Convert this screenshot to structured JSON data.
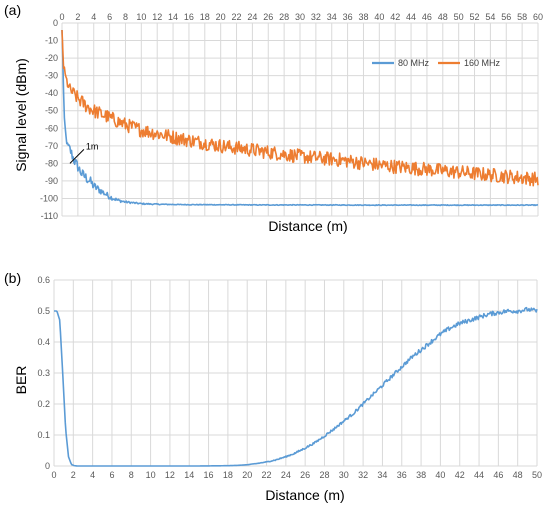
{
  "chart_data": [
    {
      "type": "line",
      "panel_label": "(a)",
      "title": "",
      "xlabel": "Distance  (m)",
      "ylabel": "Signal level  (dBm)",
      "xlim": [
        0,
        60
      ],
      "ylim": [
        -110,
        0
      ],
      "x_ticks": [
        0,
        2,
        4,
        6,
        8,
        10,
        12,
        14,
        16,
        18,
        20,
        22,
        24,
        26,
        28,
        30,
        32,
        34,
        36,
        38,
        40,
        42,
        44,
        46,
        48,
        50,
        52,
        54,
        56,
        58,
        60
      ],
      "y_ticks": [
        0,
        -10,
        -20,
        -30,
        -40,
        -50,
        -60,
        -70,
        -80,
        -90,
        -100,
        -110
      ],
      "x_axis_position": "top",
      "grid": true,
      "legend": "top-right",
      "series": [
        {
          "name": "80 MHz",
          "color": "#5B9BD5",
          "x": [
            0,
            0.1,
            0.2,
            0.3,
            0.5,
            0.7,
            1.0,
            1.5,
            2,
            2.5,
            3,
            3.5,
            4,
            5,
            6,
            7,
            8,
            10,
            12,
            15,
            20,
            25,
            30,
            40,
            50,
            60
          ],
          "y": [
            -4,
            -20,
            -40,
            -55,
            -65,
            -70,
            -72,
            -78,
            -82,
            -86,
            -88,
            -90,
            -93,
            -96,
            -99,
            -101,
            -102,
            -103,
            -103.3,
            -103.5,
            -103.6,
            -103.7,
            -103.7,
            -103.8,
            -103.8,
            -103.8
          ],
          "noise": [
            0,
            1,
            1,
            1,
            2,
            2,
            3,
            3,
            3,
            3,
            3,
            3,
            2.5,
            2,
            1.5,
            1,
            0.6,
            0.4,
            0.3,
            0.2,
            0.2,
            0.2,
            0.2,
            0.2,
            0.2,
            0.2
          ]
        },
        {
          "name": "160 MHz",
          "color": "#ED7D31",
          "x": [
            0,
            0.1,
            0.2,
            0.5,
            1,
            2,
            3,
            4,
            6,
            8,
            10,
            12,
            15,
            20,
            25,
            30,
            35,
            40,
            45,
            50,
            55,
            60
          ],
          "y": [
            -4,
            -15,
            -25,
            -32,
            -38,
            -43,
            -47,
            -50,
            -54,
            -58,
            -61,
            -63,
            -66,
            -70,
            -73,
            -76,
            -78,
            -81,
            -83,
            -85,
            -87,
            -89
          ],
          "noise": [
            0,
            1,
            2,
            3,
            3.5,
            4,
            4,
            4,
            4,
            4,
            4,
            4,
            4,
            4,
            4,
            4,
            4,
            4,
            4,
            4,
            4,
            4
          ]
        }
      ],
      "annotations": [
        {
          "text": "1m",
          "x": 1,
          "y": -80
        }
      ]
    },
    {
      "type": "line",
      "panel_label": "(b)",
      "title": "",
      "xlabel": "Distance  (m)",
      "ylabel": "BER",
      "xlim": [
        0,
        50
      ],
      "ylim": [
        0,
        0.6
      ],
      "x_ticks": [
        0,
        2,
        4,
        6,
        8,
        10,
        12,
        14,
        16,
        18,
        20,
        22,
        24,
        26,
        28,
        30,
        32,
        34,
        36,
        38,
        40,
        42,
        44,
        46,
        48,
        50
      ],
      "y_ticks": [
        0,
        0.1,
        0.2,
        0.3,
        0.4,
        0.5,
        0.6
      ],
      "y_tick_labels": [
        "0",
        "0.1",
        "0.2",
        "0.3",
        "0.4",
        "0.5",
        "0.6"
      ],
      "x_axis_position": "bottom",
      "grid": true,
      "series": [
        {
          "name": "",
          "color": "#5B9BD5",
          "x": [
            0,
            0.3,
            0.6,
            0.9,
            1.2,
            1.5,
            1.8,
            2.1,
            2.4,
            3,
            5,
            10,
            15,
            18,
            19,
            20,
            21,
            22,
            23,
            24,
            25,
            26,
            27,
            28,
            29,
            30,
            31,
            32,
            33,
            34,
            35,
            36,
            37,
            38,
            39,
            40,
            41,
            42,
            43,
            44,
            45,
            46,
            47,
            48,
            49,
            50
          ],
          "y": [
            0.5,
            0.5,
            0.47,
            0.3,
            0.12,
            0.03,
            0.005,
            0.001,
            0,
            0,
            0,
            0,
            0,
            0.001,
            0.002,
            0.004,
            0.008,
            0.013,
            0.02,
            0.03,
            0.042,
            0.058,
            0.075,
            0.097,
            0.12,
            0.145,
            0.17,
            0.2,
            0.23,
            0.26,
            0.29,
            0.32,
            0.35,
            0.375,
            0.4,
            0.425,
            0.445,
            0.46,
            0.47,
            0.48,
            0.49,
            0.495,
            0.5,
            0.5,
            0.505,
            0.5
          ],
          "noise": [
            0,
            0,
            0,
            0,
            0,
            0,
            0,
            0,
            0,
            0,
            0,
            0,
            0,
            0,
            0,
            0,
            0.001,
            0.001,
            0.002,
            0.002,
            0.003,
            0.003,
            0.003,
            0.004,
            0.004,
            0.004,
            0.005,
            0.005,
            0.005,
            0.006,
            0.006,
            0.006,
            0.006,
            0.007,
            0.007,
            0.007,
            0.007,
            0.007,
            0.007,
            0.007,
            0.007,
            0.007,
            0.007,
            0.007,
            0.007,
            0.007
          ]
        }
      ]
    }
  ]
}
